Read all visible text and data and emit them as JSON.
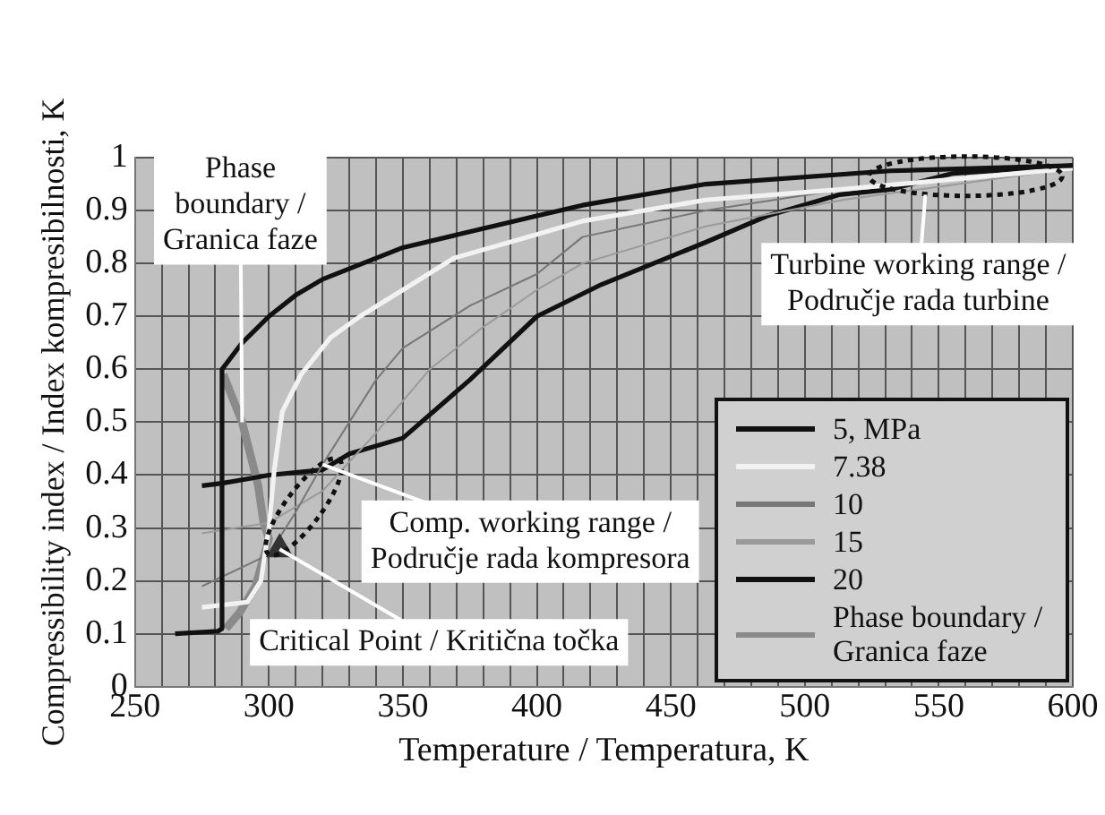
{
  "chart_data": {
    "type": "line",
    "xlabel": "Temperature / Temperatura, K",
    "ylabel": "Compressibility index / Index kompresibilnosti, K",
    "xlim": [
      250,
      600
    ],
    "ylim": [
      0,
      1
    ],
    "xticks": [
      250,
      {
        "value": 260,
        "label": null
      },
      {
        "value": 270,
        "label": null
      },
      {
        "value": 280,
        "label": null
      },
      {
        "value": 290,
        "label": null
      },
      300,
      {
        "value": 310,
        "label": null
      },
      {
        "value": 320,
        "label": null
      },
      {
        "value": 330,
        "label": null
      },
      {
        "value": 340,
        "label": null
      },
      350,
      {
        "value": 360,
        "label": null
      },
      {
        "value": 370,
        "label": null
      },
      {
        "value": 380,
        "label": null
      },
      {
        "value": 390,
        "label": null
      },
      400,
      {
        "value": 410,
        "label": null
      },
      {
        "value": 420,
        "label": null
      },
      {
        "value": 430,
        "label": null
      },
      {
        "value": 440,
        "label": null
      },
      450,
      {
        "value": 460,
        "label": null
      },
      {
        "value": 470,
        "label": null
      },
      {
        "value": 480,
        "label": null
      },
      {
        "value": 490,
        "label": null
      },
      500,
      {
        "value": 510,
        "label": null
      },
      {
        "value": 520,
        "label": null
      },
      {
        "value": 530,
        "label": null
      },
      {
        "value": 540,
        "label": null
      },
      550,
      {
        "value": 560,
        "label": null
      },
      {
        "value": 570,
        "label": null
      },
      {
        "value": 580,
        "label": null
      },
      {
        "value": 590,
        "label": null
      },
      600
    ],
    "yticks": [
      0,
      0.1,
      0.2,
      0.3,
      0.4,
      0.5,
      0.6,
      0.7,
      0.8,
      0.9,
      1
    ],
    "grid": true,
    "legend": "bottom right",
    "series": [
      {
        "name": "5, MPa",
        "color": "#111111",
        "x": [
          265,
          281,
          282.5,
          282.5,
          290,
          300,
          310,
          320,
          350,
          400,
          417,
          463,
          532,
          600
        ],
        "values": [
          0.1,
          0.105,
          0.11,
          0.6,
          0.65,
          0.7,
          0.74,
          0.77,
          0.83,
          0.89,
          0.91,
          0.95,
          0.975,
          0.985
        ]
      },
      {
        "name": "7.38",
        "color": "#f2f2f2",
        "x": [
          275,
          292,
          297,
          300,
          302,
          305,
          312,
          323,
          334,
          350,
          369,
          400,
          417,
          463,
          514,
          600
        ],
        "values": [
          0.15,
          0.16,
          0.2,
          0.3,
          0.41,
          0.52,
          0.59,
          0.66,
          0.7,
          0.75,
          0.81,
          0.855,
          0.88,
          0.92,
          0.94,
          0.98
        ]
      },
      {
        "name": "10",
        "color": "#777777",
        "x": [
          275,
          300,
          310,
          320,
          330,
          340,
          350,
          375,
          400,
          417,
          463,
          514,
          600
        ],
        "values": [
          0.19,
          0.25,
          0.33,
          0.42,
          0.5,
          0.58,
          0.64,
          0.72,
          0.78,
          0.85,
          0.9,
          0.94,
          0.98
        ]
      },
      {
        "name": "15",
        "color": "#9a9a9a",
        "x": [
          275,
          300,
          320,
          340,
          360,
          380,
          400,
          417,
          463,
          514,
          600
        ],
        "values": [
          0.29,
          0.31,
          0.37,
          0.48,
          0.6,
          0.68,
          0.75,
          0.8,
          0.87,
          0.92,
          0.98
        ]
      },
      {
        "name": "20",
        "color": "#111111",
        "x": [
          275,
          283,
          300,
          320,
          330,
          350,
          375,
          400,
          424,
          463,
          486,
          513,
          532,
          555,
          600
        ],
        "values": [
          0.38,
          0.385,
          0.4,
          0.41,
          0.44,
          0.47,
          0.58,
          0.7,
          0.76,
          0.84,
          0.89,
          0.93,
          0.94,
          0.97,
          0.985
        ]
      },
      {
        "name": "Phase boundary / Granica faze",
        "color": "#8a8a8a",
        "x": [
          283,
          290,
          296,
          298,
          300,
          295,
          289,
          284
        ],
        "values": [
          0.59,
          0.5,
          0.38,
          0.31,
          0.28,
          0.19,
          0.14,
          0.11
        ]
      },
      {
        "type": "scatter",
        "marker": "triangle",
        "color": "#333333",
        "x": [
          304
        ],
        "values": [
          0.26
        ]
      }
    ],
    "annotations": [
      {
        "text": "Phase boundary / Granica faze",
        "x": 290,
        "y": 0.5
      },
      {
        "text": "Comp. working range / Područje rada kompresora",
        "x": 320,
        "y": 0.42
      },
      {
        "text": "Critical Point / Kritična točka",
        "x": 304,
        "y": 0.26
      },
      {
        "text": "Turbine working range / Područje rada turbine",
        "x": 545,
        "y": 0.93
      }
    ]
  }
}
